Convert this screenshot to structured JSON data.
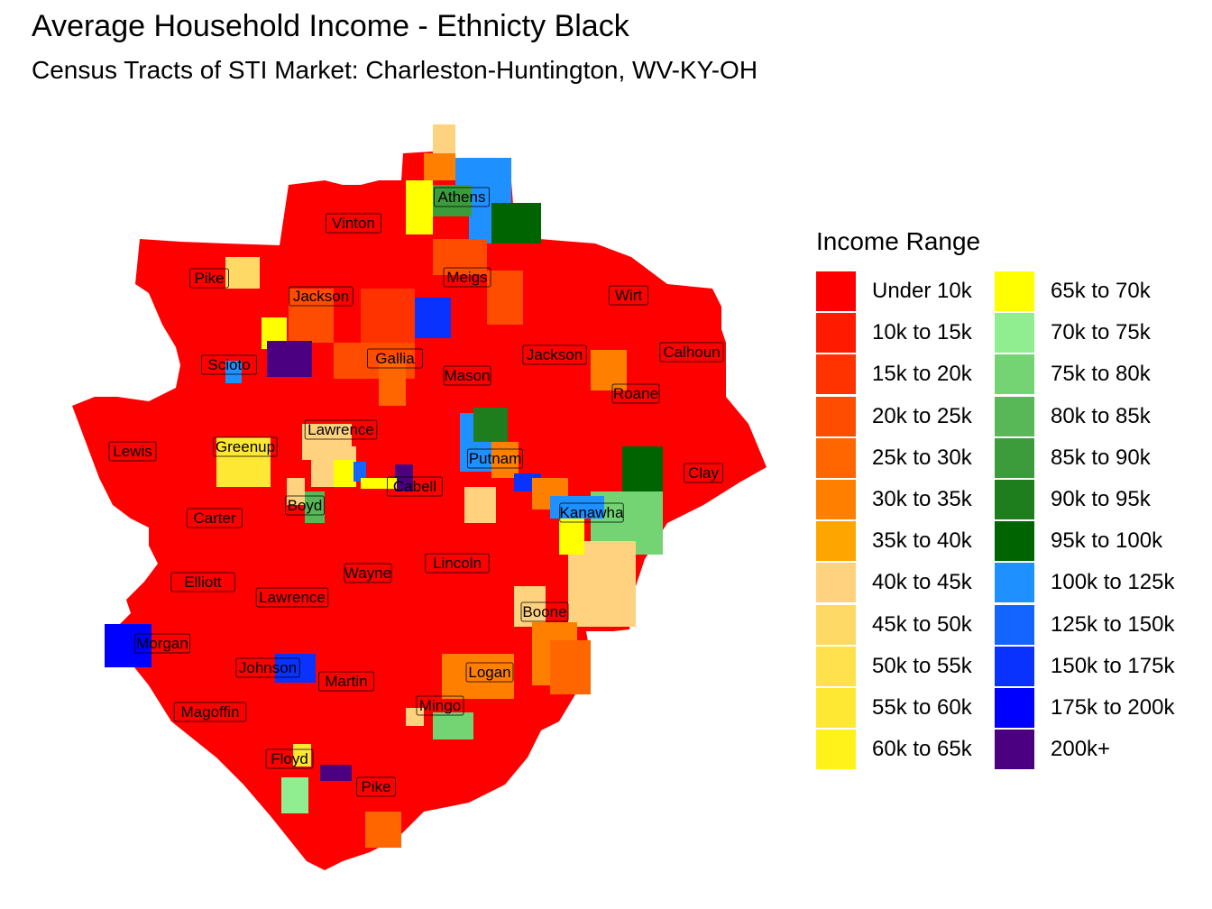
{
  "title": "Average Household Income - Ethnicty Black",
  "subtitle": "Census Tracts of STI Market: Charleston-Huntington, WV-KY-OH",
  "legend": {
    "title": "Income Range",
    "items": [
      {
        "label": "Under 10k",
        "color": "#ff0000"
      },
      {
        "label": "10k to 15k",
        "color": "#ff1a00"
      },
      {
        "label": "15k to 20k",
        "color": "#ff3300"
      },
      {
        "label": "20k to 25k",
        "color": "#ff4d00"
      },
      {
        "label": "25k to 30k",
        "color": "#ff6600"
      },
      {
        "label": "30k to 35k",
        "color": "#ff8000"
      },
      {
        "label": "35k to 40k",
        "color": "#ffa500"
      },
      {
        "label": "40k to 45k",
        "color": "#ffd280"
      },
      {
        "label": "45k to 50k",
        "color": "#ffd966"
      },
      {
        "label": "50k to 55k",
        "color": "#ffe04d"
      },
      {
        "label": "55k to 60k",
        "color": "#ffe833"
      },
      {
        "label": "60k to 65k",
        "color": "#fff21a"
      },
      {
        "label": "65k to 70k",
        "color": "#ffff00"
      },
      {
        "label": "70k to 75k",
        "color": "#90ee90"
      },
      {
        "label": "75k to 80k",
        "color": "#74d474"
      },
      {
        "label": "80k to 85k",
        "color": "#58b858"
      },
      {
        "label": "85k to 90k",
        "color": "#3c9c3c"
      },
      {
        "label": "90k to 95k",
        "color": "#1e7e1e"
      },
      {
        "label": "95k to 100k",
        "color": "#006400"
      },
      {
        "label": "100k to 125k",
        "color": "#1e90ff"
      },
      {
        "label": "125k to 150k",
        "color": "#1464ff"
      },
      {
        "label": "150k to 175k",
        "color": "#0a32ff"
      },
      {
        "label": "175k to 200k",
        "color": "#0000ff"
      },
      {
        "label": "200k+",
        "color": "#4b0082"
      }
    ]
  },
  "counties": [
    "Athens",
    "Vinton",
    "Pike",
    "Jackson",
    "Meigs",
    "Wirt",
    "Calhoun",
    "Scioto",
    "Gallia",
    "Jackson",
    "Mason",
    "Roane",
    "Lawrence",
    "Greenup",
    "Lewis",
    "Putnam",
    "Clay",
    "Cabell",
    "Boyd",
    "Kanawha",
    "Carter",
    "Lincoln",
    "Wayne",
    "Elliott",
    "Lawrence",
    "Boone",
    "Morgan",
    "Johnson",
    "Martin",
    "Logan",
    "Mingo",
    "Magoffin",
    "Floyd",
    "Pike"
  ]
}
